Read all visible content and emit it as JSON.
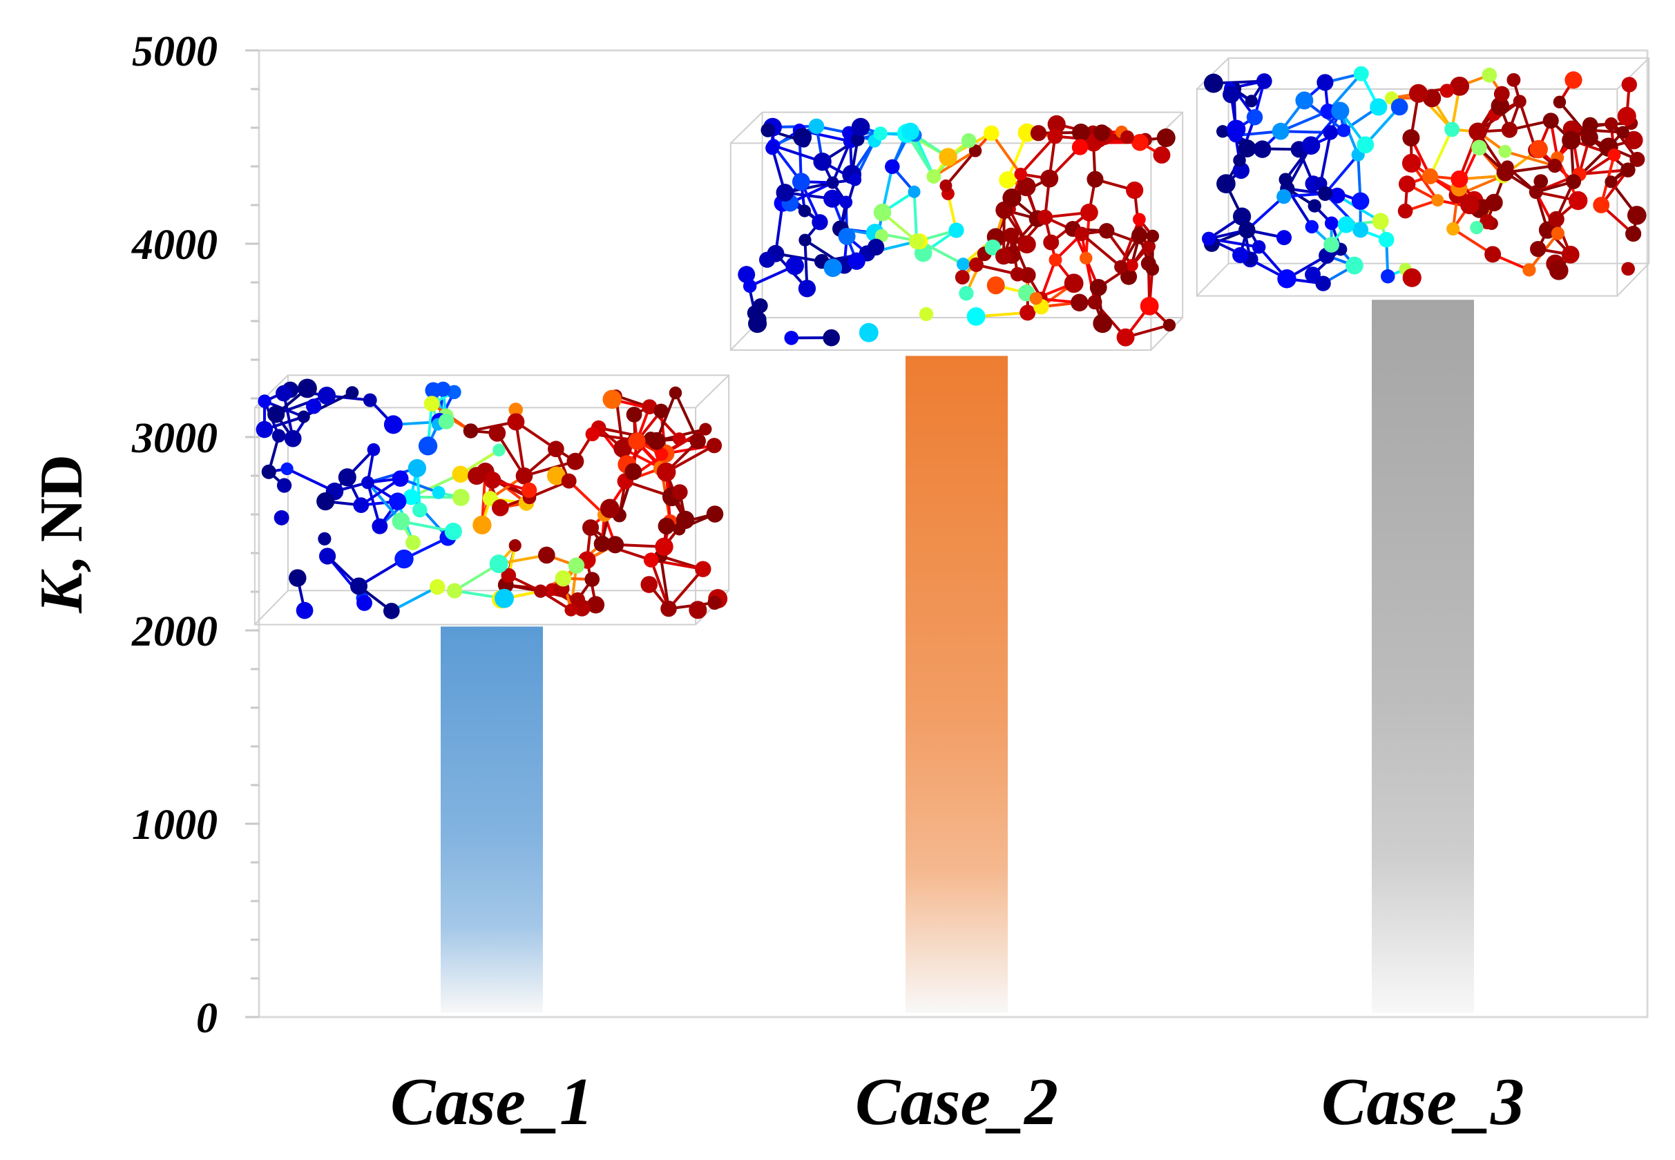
{
  "chart_data": {
    "type": "bar",
    "title": "",
    "xlabel": "",
    "ylabel": "K, ND",
    "ylabel_italic_part": "K",
    "ylabel_rest": ", ND",
    "ylim": [
      0,
      5000
    ],
    "yticks": [
      0,
      1000,
      2000,
      3000,
      4000,
      5000
    ],
    "ytick_labels": [
      "0",
      "1000",
      "2000",
      "3000",
      "4000",
      "5000"
    ],
    "categories": [
      "Case_1",
      "Case_2",
      "Case_3"
    ],
    "values": [
      2020,
      3420,
      3710
    ],
    "bar_colors": [
      "#5b9bd5",
      "#ed7d31",
      "#a5a5a5"
    ],
    "grid": false,
    "legend": "none",
    "insets": [
      {
        "name": "network-inset-case-1",
        "y_range": [
          2030,
          3320
        ],
        "seed": 11
      },
      {
        "name": "network-inset-case-2",
        "y_range": [
          3450,
          4680
        ],
        "seed": 23
      },
      {
        "name": "network-inset-case-3",
        "y_range": [
          3730,
          4960
        ],
        "seed": 37
      }
    ]
  }
}
